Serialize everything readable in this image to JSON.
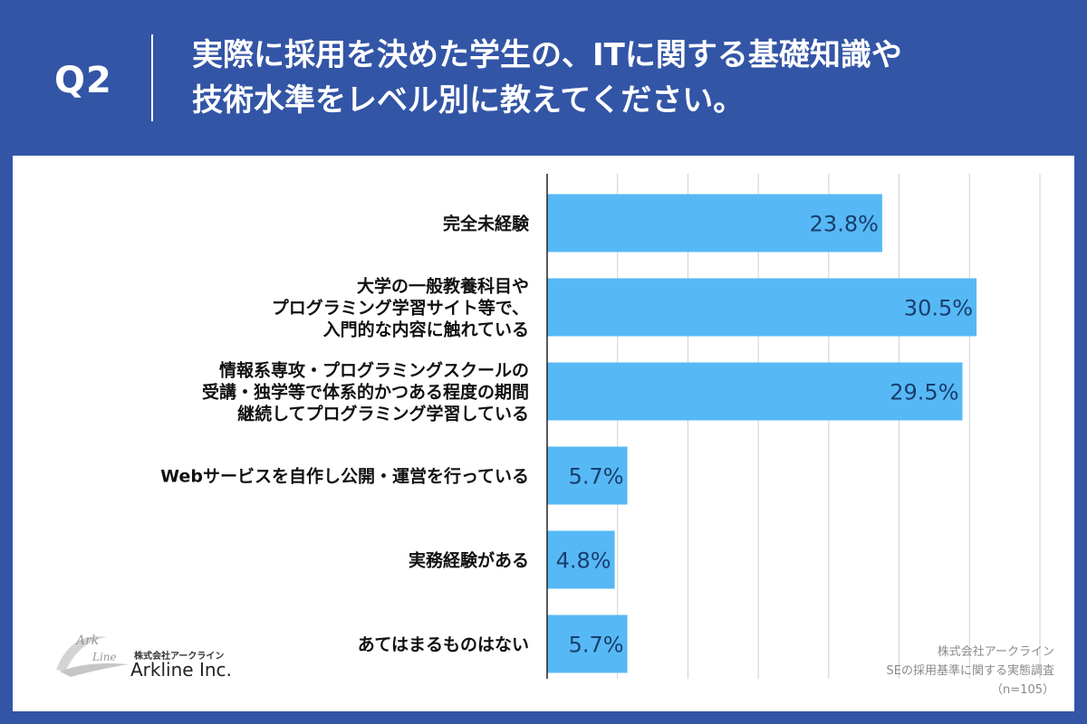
{
  "header": {
    "question_label": "Q2",
    "title_line1": "実際に採用を決めた学生の、ITに関する基礎知識や",
    "title_line2": "技術水準をレベル別に教えてください。"
  },
  "chart_data": {
    "type": "bar",
    "orientation": "horizontal",
    "categories": [
      [
        "完全未経験"
      ],
      [
        "大学の一般教養科目や",
        "プログラミング学習サイト等で、",
        "入門的な内容に触れている"
      ],
      [
        "情報系専攻・プログラミングスクールの",
        "受講・独学等で体系的かつある程度の期間",
        "継続してプログラミング学習している"
      ],
      [
        "Webサービスを自作し公開・運営を行っている"
      ],
      [
        "実務経験がある"
      ],
      [
        "あてはまるものはない"
      ]
    ],
    "values": [
      23.8,
      30.5,
      29.5,
      5.7,
      4.8,
      5.7
    ],
    "value_labels": [
      "23.8%",
      "30.5%",
      "29.5%",
      "5.7%",
      "4.8%",
      "5.7%"
    ],
    "xlim": [
      0,
      35
    ],
    "grid": true,
    "bar_color": "#56b9f5",
    "label_color": "#1a3d6e"
  },
  "logo": {
    "small_text": "株式会社アークライン",
    "name": "Arkline Inc."
  },
  "source": {
    "line1": "株式会社アークライン",
    "line2": "SEの採用基準に関する実態調査",
    "line3": "（n=105）"
  }
}
